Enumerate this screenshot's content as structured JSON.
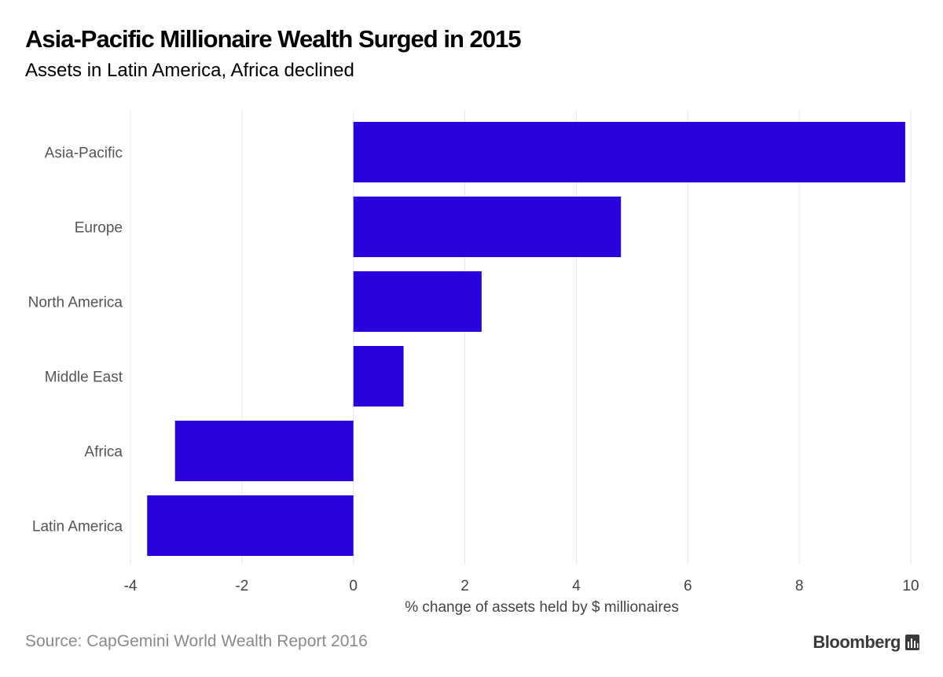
{
  "title": "Asia-Pacific Millionaire Wealth Surged in 2015",
  "subtitle": "Assets in Latin America, Africa declined",
  "source": "Source: CapGemini World Wealth Report 2016",
  "brand": "Bloomberg",
  "brand_icon": "bloomberg-terminal-icon",
  "colors": {
    "bar": "#2a00dc",
    "grid": "#e6e6e6",
    "axis_text": "#444444",
    "label_text": "#555555",
    "source_text": "#8a8a8a"
  },
  "chart_data": {
    "type": "bar",
    "orientation": "horizontal",
    "categories": [
      "Asia-Pacific",
      "Europe",
      "North America",
      "Middle East",
      "Africa",
      "Latin America"
    ],
    "values": [
      9.9,
      4.8,
      2.3,
      0.9,
      -3.2,
      -3.7
    ],
    "title": "Asia-Pacific Millionaire Wealth Surged in 2015",
    "subtitle": "Assets in Latin America, Africa declined",
    "xlabel": "% change of assets held by $ millionaires",
    "ylabel": "",
    "xlim": [
      -4,
      10
    ],
    "xticks": [
      -4,
      -2,
      0,
      2,
      4,
      6,
      8,
      10
    ],
    "xtick_labels": [
      "-4",
      "-2",
      "0",
      "2",
      "4",
      "6",
      "8",
      "10"
    ],
    "grid": true,
    "legend": "none"
  }
}
